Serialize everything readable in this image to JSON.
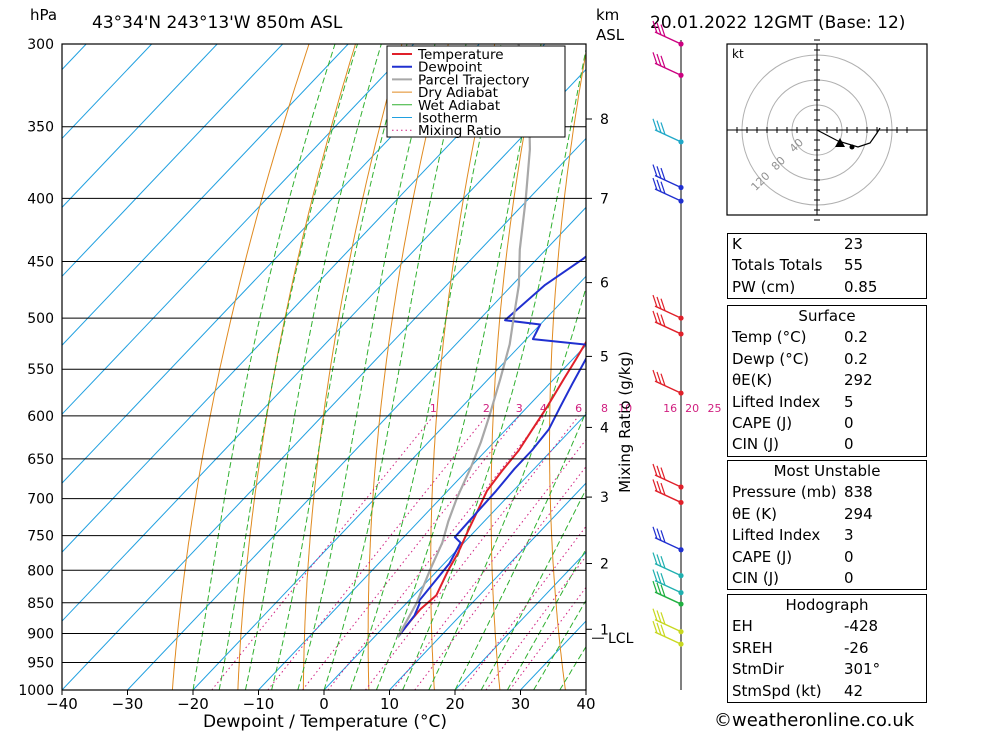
{
  "header": {
    "hpa_label": "hPa",
    "location": "43°34'N  243°13'W  850m  ASL",
    "km_label": "km",
    "asl_label": "ASL",
    "datetime": "20.01.2022  12GMT  (Base: 12)"
  },
  "chart_data": {
    "type": "line",
    "xlabel": "Dewpoint / Temperature (°C)",
    "x_ticks": [
      -40,
      -30,
      -20,
      -10,
      0,
      10,
      20,
      30,
      40
    ],
    "xlim": [
      -40,
      40
    ],
    "ylim": [
      1000,
      300
    ],
    "y_scale": "log",
    "pressure_levels": [
      300,
      350,
      400,
      450,
      500,
      550,
      600,
      650,
      700,
      750,
      800,
      850,
      900,
      950,
      1000
    ],
    "km_labels": [
      {
        "label": "1",
        "p": 893
      },
      {
        "label": "2",
        "p": 790
      },
      {
        "label": "3",
        "p": 698
      },
      {
        "label": "4",
        "p": 613
      },
      {
        "label": "5",
        "p": 537
      },
      {
        "label": "6",
        "p": 468
      },
      {
        "label": "7",
        "p": 400
      },
      {
        "label": "8",
        "p": 345
      }
    ],
    "lcl_label": "LCL",
    "lcl_p": 908,
    "mixing_ratio_axis_label": "Mixing Ratio (g/kg)",
    "mixing_ratio_labels": [
      "1",
      "2",
      "3",
      "4",
      "6",
      "8",
      "10",
      "16",
      "20",
      "25"
    ],
    "mixing_ratio_values": [
      1,
      2,
      3,
      4,
      6,
      8,
      10,
      16,
      20,
      25
    ],
    "legend": [
      "Temperature",
      "Dewpoint",
      "Parcel Trajectory",
      "Dry Adiabat",
      "Wet Adiabat",
      "Isotherm",
      "Mixing Ratio"
    ],
    "series": [
      {
        "name": "Temperature",
        "color": "#e0202a",
        "points": [
          [
            3.6,
            906
          ],
          [
            3.2,
            880
          ],
          [
            3.0,
            860
          ],
          [
            3.4,
            838
          ],
          [
            1.6,
            800
          ],
          [
            0.6,
            775
          ],
          [
            -1.0,
            745
          ],
          [
            -2.6,
            715
          ],
          [
            -4.0,
            690
          ],
          [
            -4.6,
            665
          ],
          [
            -5.0,
            640
          ],
          [
            -6.0,
            615
          ],
          [
            -7.0,
            590
          ],
          [
            -8.5,
            560
          ],
          [
            -9.5,
            540
          ],
          [
            -10.5,
            522
          ],
          [
            -12.0,
            512
          ],
          [
            -12.6,
            502
          ],
          [
            -11.6,
            482
          ],
          [
            -10.6,
            456
          ],
          [
            -9.6,
            440
          ],
          [
            -9.0,
            420
          ],
          [
            -8.6,
            400
          ],
          [
            -9.6,
            382
          ],
          [
            -10.0,
            366
          ],
          [
            -10.0,
            352
          ],
          [
            -11.0,
            340
          ],
          [
            -12.0,
            315
          ],
          [
            -13.0,
            300
          ]
        ]
      },
      {
        "name": "Dewpoint",
        "color": "#2030d0",
        "points": [
          [
            3.6,
            906
          ],
          [
            3.0,
            870
          ],
          [
            2.0,
            850
          ],
          [
            1.6,
            848
          ],
          [
            0.8,
            790
          ],
          [
            -0.5,
            760
          ],
          [
            -2.2,
            752
          ],
          [
            -2.4,
            720
          ],
          [
            -2.6,
            690
          ],
          [
            -3.0,
            662
          ],
          [
            -3.0,
            640
          ],
          [
            -3.5,
            615
          ],
          [
            -5.0,
            590
          ],
          [
            -6.5,
            565
          ],
          [
            -8.0,
            540
          ],
          [
            -9.0,
            526
          ],
          [
            -19.0,
            520
          ],
          [
            -20.0,
            506
          ],
          [
            -26.0,
            502
          ],
          [
            -25.0,
            470
          ],
          [
            -23.0,
            448
          ],
          [
            -22.0,
            430
          ],
          [
            -21.0,
            400
          ],
          [
            -22.5,
            386
          ],
          [
            -25.5,
            380
          ],
          [
            -21.0,
            376
          ],
          [
            -16.0,
            362
          ],
          [
            -14.5,
            350
          ],
          [
            -13.0,
            348
          ],
          [
            -12.0,
            325
          ],
          [
            -12.0,
            318
          ],
          [
            -14.0,
            300
          ]
        ]
      },
      {
        "name": "Parcel Trajectory",
        "color": "#a8a8a8",
        "points": [
          [
            3.6,
            906
          ],
          [
            1.5,
            850
          ],
          [
            -1.2,
            800
          ],
          [
            -3.3,
            760
          ],
          [
            -5.5,
            730
          ],
          [
            -7.5,
            700
          ],
          [
            -9.9,
            660
          ],
          [
            -12.0,
            630
          ],
          [
            -14.5,
            600
          ],
          [
            -18.2,
            560
          ],
          [
            -21.8,
            525
          ],
          [
            -25.0,
            500
          ],
          [
            -29.0,
            470
          ],
          [
            -34.0,
            440
          ],
          [
            -40.5,
            400
          ],
          [
            -47.0,
            365
          ],
          [
            -55.0,
            330
          ],
          [
            -64.0,
            300
          ]
        ]
      }
    ]
  },
  "wind_profile": {
    "levels": [
      {
        "p": 300,
        "color": "#cc0080"
      },
      {
        "p": 318,
        "color": "#cc0080"
      },
      {
        "p": 360,
        "color": "#20a8c8"
      },
      {
        "p": 392,
        "color": "#2030d0"
      },
      {
        "p": 402,
        "color": "#2030d0"
      },
      {
        "p": 500,
        "color": "#e0202a"
      },
      {
        "p": 515,
        "color": "#e0202a"
      },
      {
        "p": 575,
        "color": "#e0202a"
      },
      {
        "p": 685,
        "color": "#e0202a"
      },
      {
        "p": 705,
        "color": "#e0202a"
      },
      {
        "p": 770,
        "color": "#2030d0"
      },
      {
        "p": 808,
        "color": "#20b0b0"
      },
      {
        "p": 834,
        "color": "#20b0b0"
      },
      {
        "p": 852,
        "color": "#20b040"
      },
      {
        "p": 897,
        "color": "#c8d820"
      },
      {
        "p": 918,
        "color": "#c8d820"
      }
    ]
  },
  "hodograph": {
    "unit_label": "kt",
    "ring_labels": [
      "40",
      "80",
      "120"
    ]
  },
  "indices": [
    {
      "label": "K",
      "value": "23"
    },
    {
      "label": "Totals Totals",
      "value": "55"
    },
    {
      "label": "PW (cm)",
      "value": "0.85"
    }
  ],
  "surface": {
    "title": "Surface",
    "rows": [
      {
        "label": "Temp (°C)",
        "value": "0.2"
      },
      {
        "label": "Dewp (°C)",
        "value": "0.2"
      },
      {
        "label": "θE(K)",
        "value": "292"
      },
      {
        "label": "Lifted Index",
        "value": "5"
      },
      {
        "label": "CAPE (J)",
        "value": "0"
      },
      {
        "label": "CIN (J)",
        "value": "0"
      }
    ]
  },
  "most_unstable": {
    "title": "Most Unstable",
    "rows": [
      {
        "label": "Pressure (mb)",
        "value": "838"
      },
      {
        "label": "θE (K)",
        "value": "294"
      },
      {
        "label": "Lifted Index",
        "value": "3"
      },
      {
        "label": "CAPE (J)",
        "value": "0"
      },
      {
        "label": "CIN (J)",
        "value": "0"
      }
    ]
  },
  "hodograph_table": {
    "title": "Hodograph",
    "rows": [
      {
        "label": "EH",
        "value": "-428"
      },
      {
        "label": "SREH",
        "value": "-26"
      },
      {
        "label": "StmDir",
        "value": "301°"
      },
      {
        "label": "StmSpd (kt)",
        "value": "42"
      }
    ]
  },
  "footer": {
    "copyright": "©weatheronline.co.uk"
  }
}
